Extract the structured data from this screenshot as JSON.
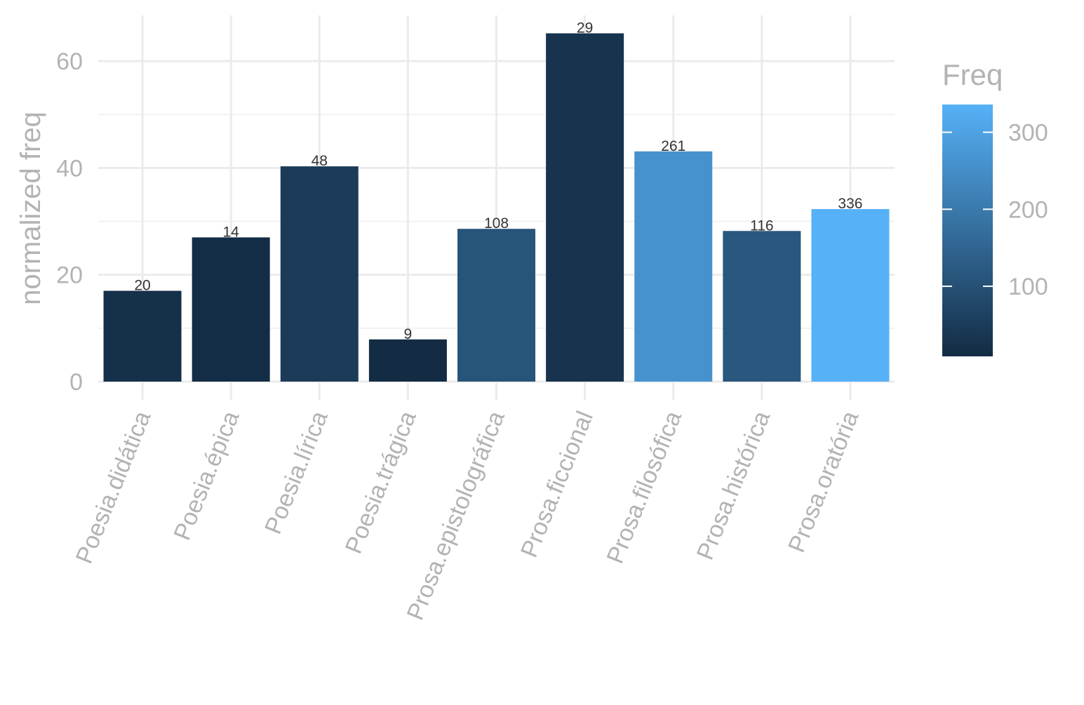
{
  "chart_data": {
    "type": "bar",
    "title": "",
    "xlabel": "",
    "ylabel": "normalized freq",
    "ylim": [
      0,
      68
    ],
    "y_ticks": [
      0,
      20,
      40,
      60
    ],
    "grid": true,
    "categories": [
      "Poesia.didática",
      "Poesia.épica",
      "Poesia.lírica",
      "Poesia.trágica",
      "Prosa.epistolográfica",
      "Prosa.ficcional",
      "Prosa.filosófica",
      "Prosa.histórica",
      "Prosa.oratória"
    ],
    "values": [
      17,
      27,
      40.3,
      7.9,
      28.6,
      65.2,
      43.1,
      28.2,
      32.3
    ],
    "freq": [
      20,
      14,
      48,
      9,
      108,
      29,
      261,
      116,
      336
    ],
    "bar_labels": [
      "20",
      "14",
      "48",
      "9",
      "108",
      "29",
      "261",
      "116",
      "336"
    ],
    "legend": {
      "title": "Freq",
      "position": "right",
      "range": [
        9,
        336
      ],
      "ticks": [
        100,
        200,
        300
      ],
      "tick_labels": [
        "100",
        "200",
        "300"
      ],
      "color_low": "#132B43",
      "color_high": "#56B1F7"
    }
  }
}
